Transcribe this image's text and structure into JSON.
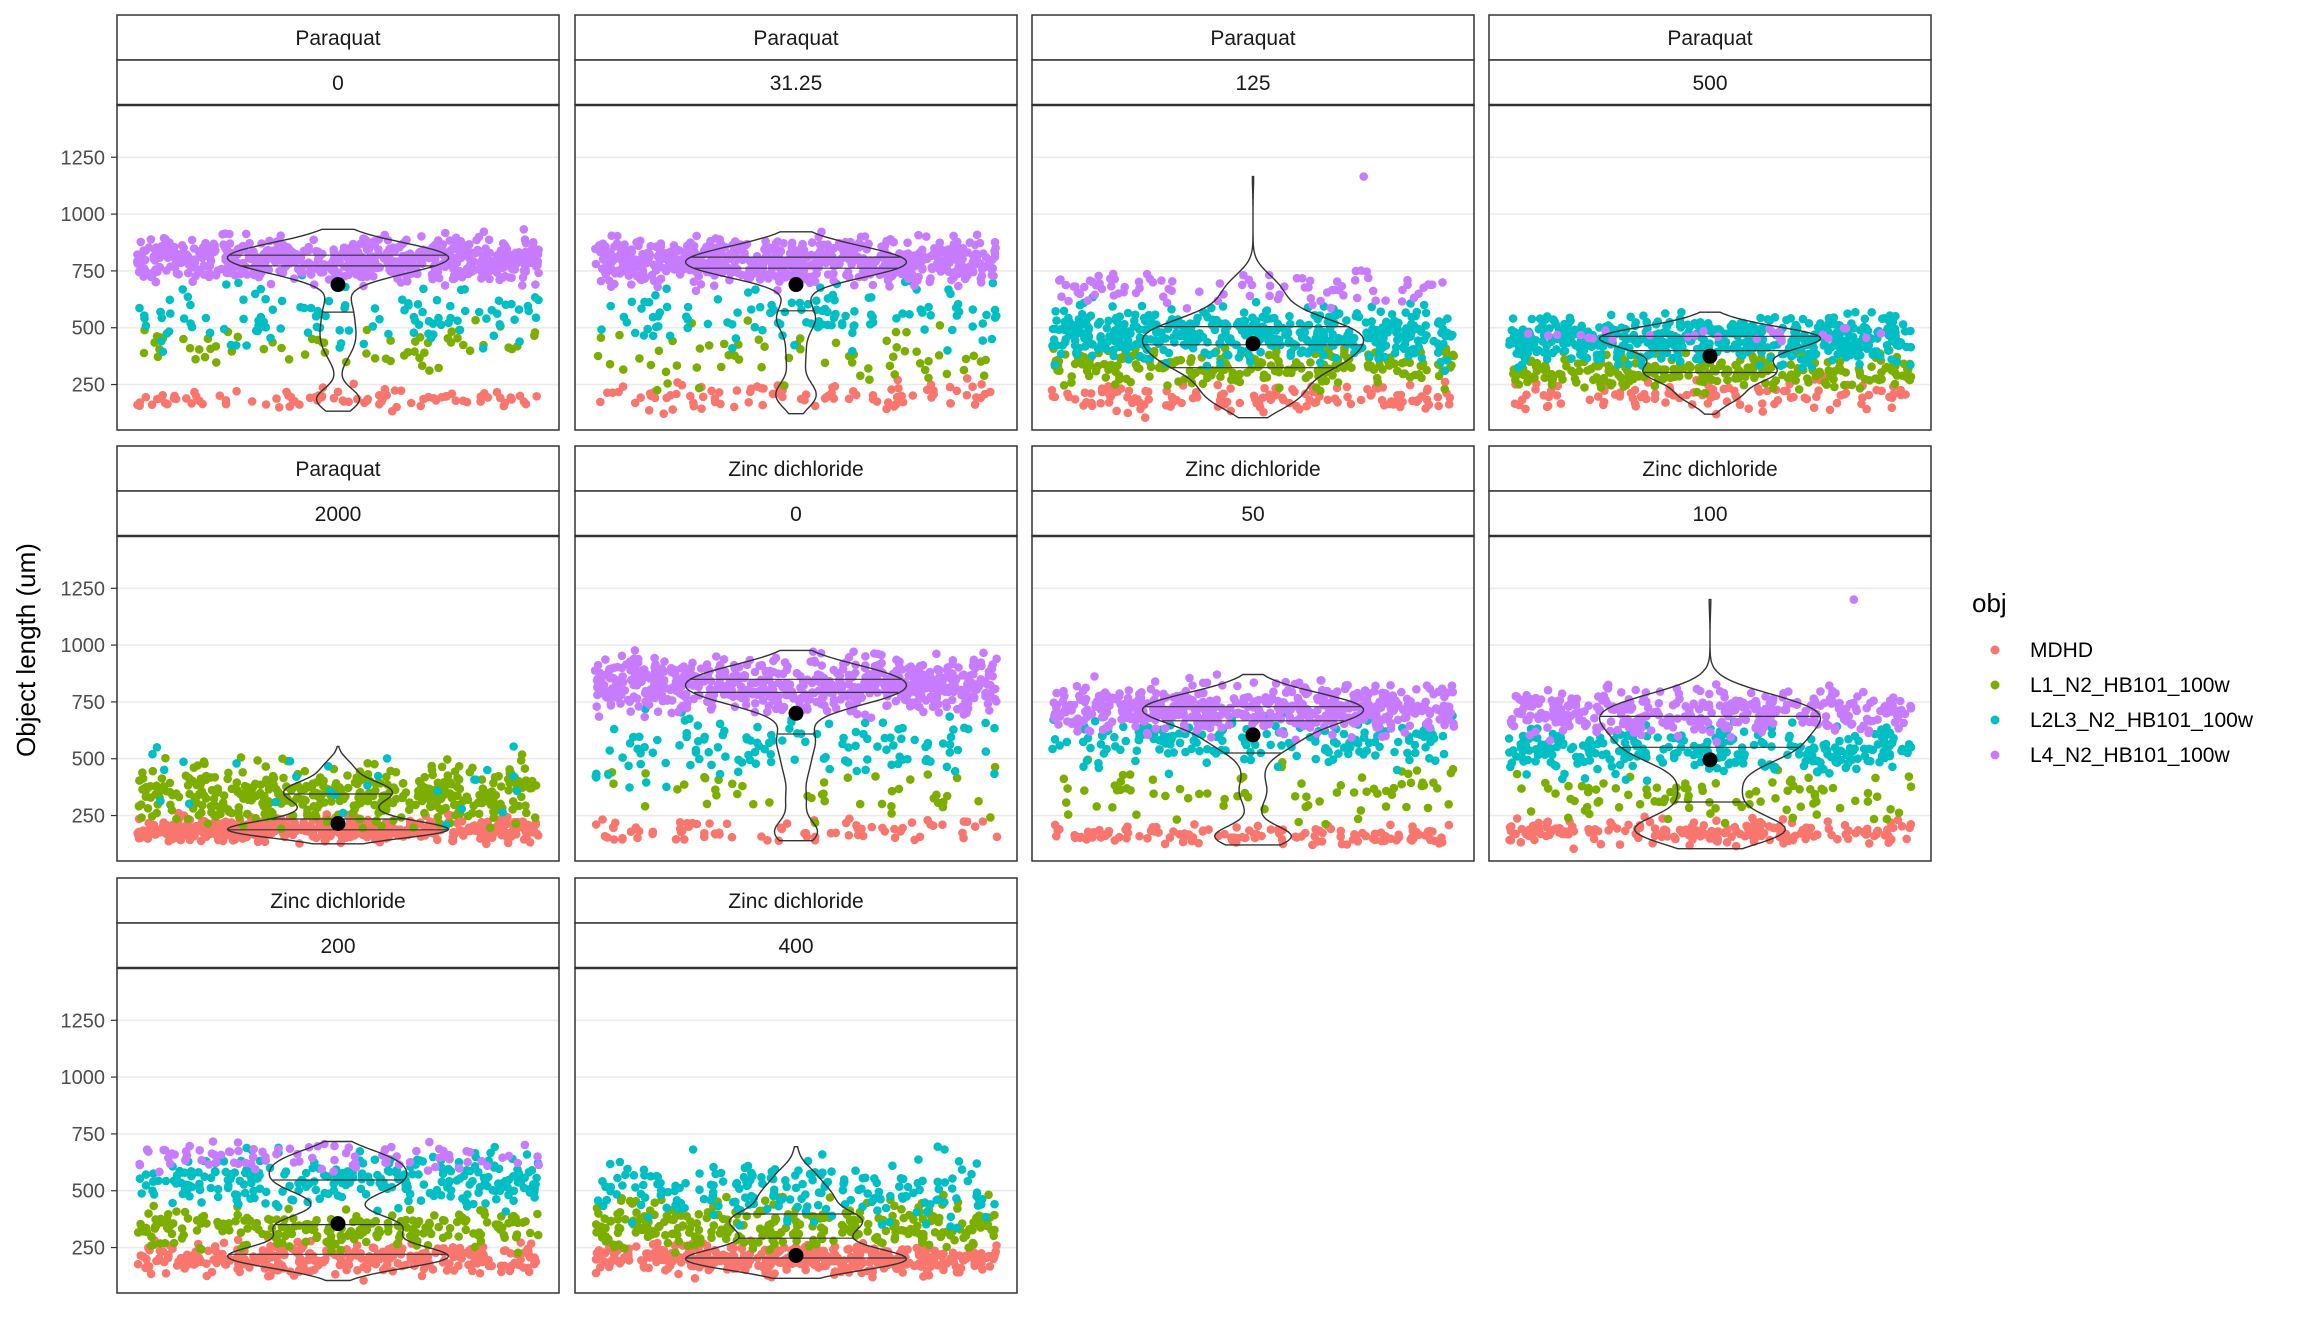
{
  "chart_data": {
    "type": "scatter",
    "subtype": "jitter-violin-facets",
    "title": "",
    "xlabel": "",
    "ylabel": "Object length (um)",
    "yticks": [
      250,
      500,
      750,
      1000,
      1250
    ],
    "ylim": [
      50,
      1480
    ],
    "grid": true,
    "legend": {
      "title": "obj",
      "position": "right",
      "entries": [
        {
          "name": "MDHD",
          "color": "#F8766D"
        },
        {
          "name": "L1_N2_HB101_100w",
          "color": "#7CAE00"
        },
        {
          "name": "L2L3_N2_HB101_100w",
          "color": "#00BFC4"
        },
        {
          "name": "L4_N2_HB101_100w",
          "color": "#C77CFF"
        }
      ]
    },
    "facets": [
      {
        "condition": "Paraquat",
        "dose": "0",
        "mean": 690,
        "groups": {
          "MDHD": [
            100,
            270
          ],
          "L1_N2_HB101_100w": [
            250,
            560
          ],
          "L2L3_N2_HB101_100w": [
            330,
            780
          ],
          "L4_N2_HB101_100w": [
            660,
            950
          ]
        },
        "groupWeights": [
          0.1,
          0.07,
          0.13,
          0.7
        ]
      },
      {
        "condition": "Paraquat",
        "dose": "31.25",
        "mean": 690,
        "groups": {
          "MDHD": [
            100,
            300
          ],
          "L1_N2_HB101_100w": [
            180,
            560
          ],
          "L2L3_N2_HB101_100w": [
            330,
            780
          ],
          "L4_N2_HB101_100w": [
            650,
            940
          ]
        },
        "groupWeights": [
          0.1,
          0.07,
          0.13,
          0.7
        ]
      },
      {
        "condition": "Paraquat",
        "dose": "125",
        "mean": 430,
        "groups": {
          "MDHD": [
            100,
            280
          ],
          "L1_N2_HB101_100w": [
            200,
            460
          ],
          "L2L3_N2_HB101_100w": [
            300,
            640
          ],
          "L4_N2_HB101_100w": [
            560,
            780,
            1165
          ]
        },
        "groupWeights": [
          0.15,
          0.25,
          0.5,
          0.1
        ]
      },
      {
        "condition": "Paraquat",
        "dose": "500",
        "mean": 375,
        "groups": {
          "MDHD": [
            100,
            300
          ],
          "L1_N2_HB101_100w": [
            200,
            420
          ],
          "L2L3_N2_HB101_100w": [
            300,
            600
          ],
          "L4_N2_HB101_100w": [
            420,
            520
          ]
        },
        "groupWeights": [
          0.12,
          0.28,
          0.57,
          0.03
        ]
      },
      {
        "condition": "Paraquat",
        "dose": "2000",
        "mean": 215,
        "groups": {
          "MDHD": [
            110,
            270
          ],
          "L1_N2_HB101_100w": [
            150,
            540
          ],
          "L2L3_N2_HB101_100w": [
            180,
            660
          ],
          "L4_N2_HB101_100w": []
        },
        "groupWeights": [
          0.5,
          0.47,
          0.03,
          0
        ]
      },
      {
        "condition": "Zinc dichloride",
        "dose": "0",
        "mean": 700,
        "groups": {
          "MDHD": [
            100,
            260
          ],
          "L1_N2_HB101_100w": [
            180,
            520
          ],
          "L2L3_N2_HB101_100w": [
            340,
            760
          ],
          "L4_N2_HB101_100w": [
            650,
            1000
          ]
        },
        "groupWeights": [
          0.09,
          0.05,
          0.14,
          0.72
        ]
      },
      {
        "condition": "Zinc dichloride",
        "dose": "50",
        "mean": 605,
        "groups": {
          "MDHD": [
            100,
            230
          ],
          "L1_N2_HB101_100w": [
            180,
            560
          ],
          "L2L3_N2_HB101_100w": [
            400,
            760
          ],
          "L4_N2_HB101_100w": [
            560,
            880
          ]
        },
        "groupWeights": [
          0.14,
          0.08,
          0.2,
          0.58
        ]
      },
      {
        "condition": "Zinc dichloride",
        "dose": "100",
        "mean": 495,
        "groups": {
          "MDHD": [
            100,
            260
          ],
          "L1_N2_HB101_100w": [
            180,
            500
          ],
          "L2L3_N2_HB101_100w": [
            380,
            700
          ],
          "L4_N2_HB101_100w": [
            560,
            850,
            1200
          ]
        },
        "groupWeights": [
          0.22,
          0.1,
          0.3,
          0.38
        ]
      },
      {
        "condition": "Zinc dichloride",
        "dose": "200",
        "mean": 355,
        "groups": {
          "MDHD": [
            100,
            300
          ],
          "L1_N2_HB101_100w": [
            200,
            460
          ],
          "L2L3_N2_HB101_100w": [
            380,
            720
          ],
          "L4_N2_HB101_100w": [
            560,
            740
          ]
        },
        "groupWeights": [
          0.35,
          0.25,
          0.3,
          0.1
        ]
      },
      {
        "condition": "Zinc dichloride",
        "dose": "400",
        "mean": 215,
        "groups": {
          "MDHD": [
            100,
            300
          ],
          "L1_N2_HB101_100w": [
            200,
            500
          ],
          "L2L3_N2_HB101_100w": [
            280,
            710
          ],
          "L4_N2_HB101_100w": []
        },
        "groupWeights": [
          0.45,
          0.33,
          0.22,
          0
        ]
      }
    ]
  }
}
